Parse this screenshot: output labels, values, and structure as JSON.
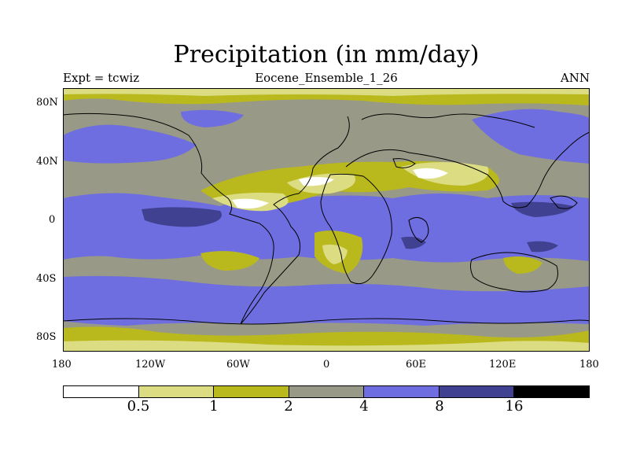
{
  "title": "Precipitation (in mm/day)",
  "subtitle_left": "Expt = tcwiz",
  "subtitle_center": "Eocene_Ensemble_1_26",
  "subtitle_right": "ANN",
  "x_ticks": [
    "180",
    "120W",
    "60W",
    "0",
    "60E",
    "120E",
    "180"
  ],
  "y_ticks": [
    "80N",
    "40N",
    "0",
    "40S",
    "80S"
  ],
  "colorbar": {
    "labels": [
      "0.5",
      "1",
      "2",
      "4",
      "8",
      "16"
    ],
    "colors": [
      "#ffffff",
      "#dcdc82",
      "#b9b91e",
      "#999987",
      "#6e6ee0",
      "#414191",
      "#000000"
    ]
  },
  "map_data": {
    "type": "contour-map",
    "variable": "precipitation",
    "units": "mm/day",
    "lon_range": [
      -180,
      180
    ],
    "lat_range": [
      -90,
      90
    ],
    "levels": [
      0.5,
      1,
      2,
      4,
      8,
      16
    ]
  }
}
